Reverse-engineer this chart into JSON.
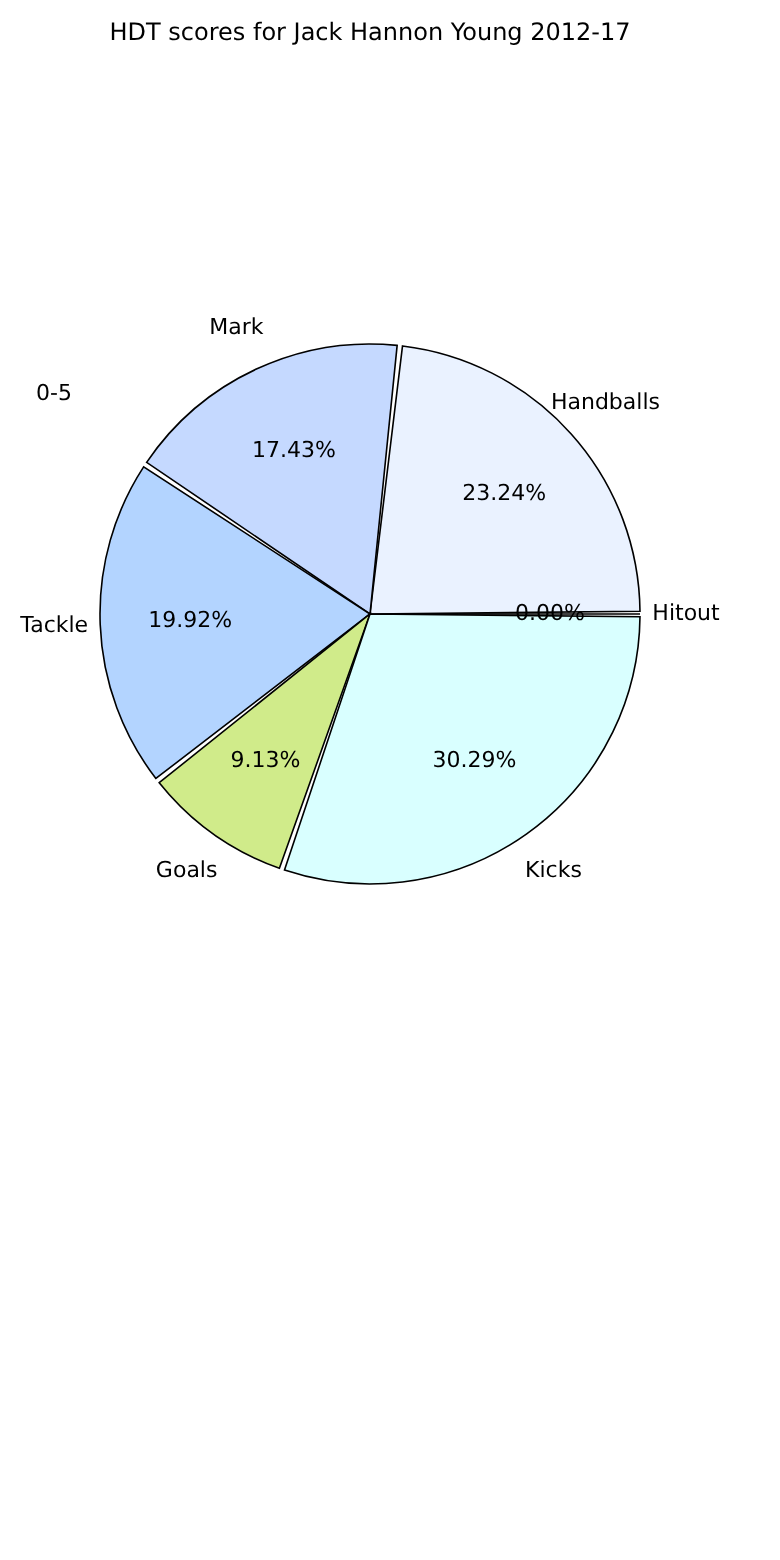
{
  "chart_data": {
    "type": "pie",
    "title": "HDT scores for Jack Hannon Young 2012-17",
    "categories": [
      "Hitout",
      "Handballs",
      "Mark",
      "Tackle",
      "Goals",
      "Kicks"
    ],
    "values": [
      0.0,
      23.24,
      17.43,
      19.92,
      9.13,
      30.29
    ],
    "value_labels": [
      "0.00%",
      "23.24%",
      "17.43%",
      "19.92%",
      "9.13%",
      "30.29%"
    ],
    "colors": [
      "#dddddd",
      "#eaf2ff",
      "#c5d9ff",
      "#b3d4ff",
      "#d0eb8a",
      "#d9ffff"
    ],
    "annotations": [
      "0-5"
    ],
    "legend": false
  }
}
